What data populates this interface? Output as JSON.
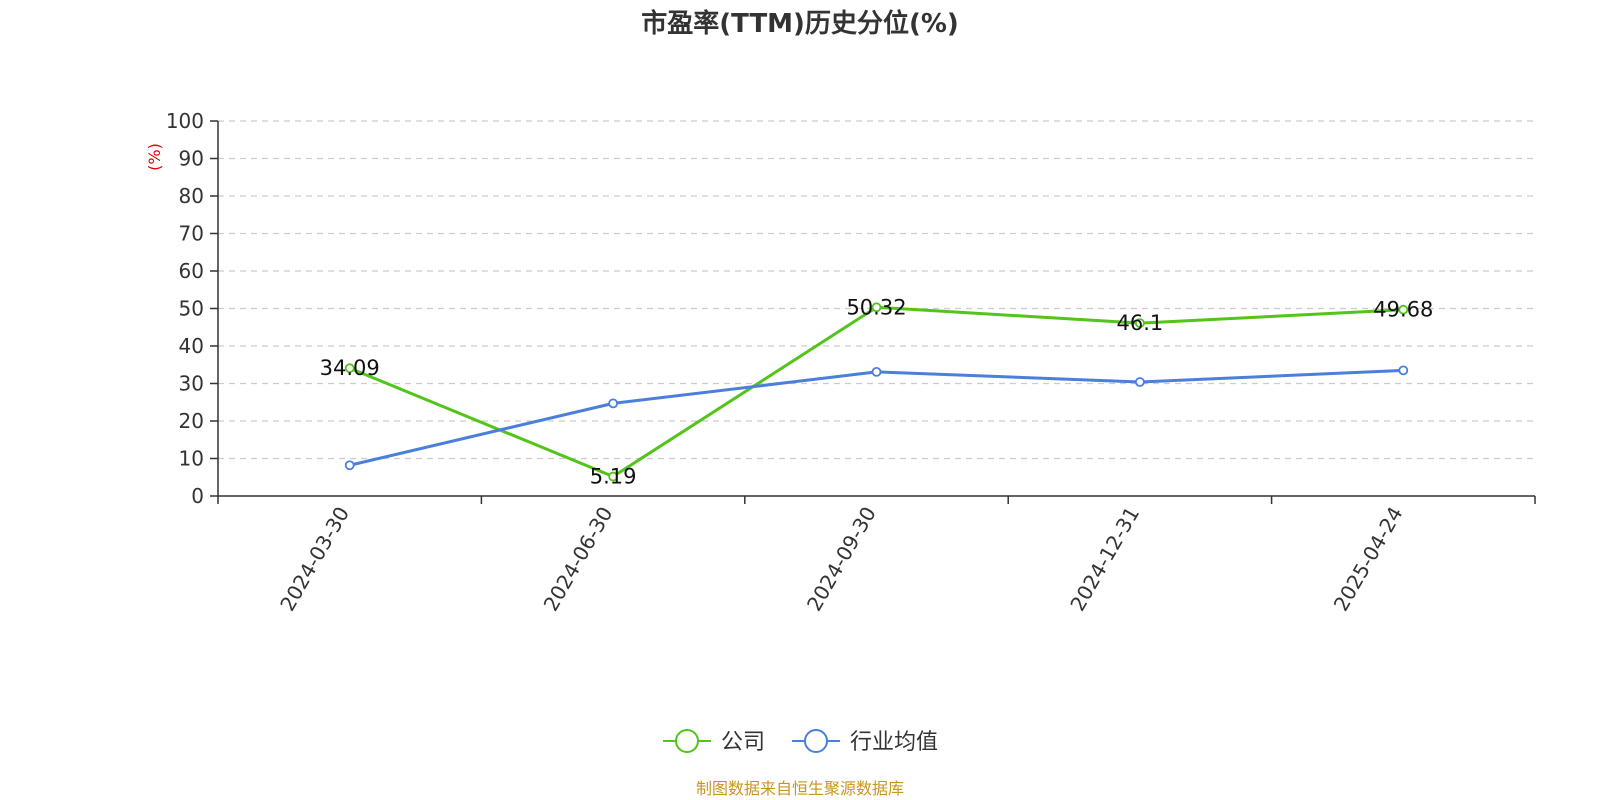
{
  "chart_data": {
    "type": "line",
    "title": "市盈率(TTM)历史分位(%)",
    "y_unit": "(%)",
    "categories": [
      "2024-03-30",
      "2024-06-30",
      "2024-09-30",
      "2024-12-31",
      "2025-04-24"
    ],
    "ylim": [
      0,
      100
    ],
    "y_ticks": [
      "0",
      "10",
      "20",
      "30",
      "40",
      "50",
      "60",
      "70",
      "80",
      "90",
      "100"
    ],
    "grid": true,
    "legend_position": "bottom-center",
    "series": [
      {
        "name": "公司",
        "color": "#52c41a",
        "values": [
          34.09,
          5.19,
          50.32,
          46.1,
          49.68
        ],
        "labels": [
          "34.09",
          "5.19",
          "50.32",
          "46.1",
          "49.68"
        ]
      },
      {
        "name": "行业均值",
        "color": "#4a7fdc",
        "values": [
          8.2,
          24.7,
          33.1,
          30.4,
          33.5
        ]
      }
    ]
  },
  "source": "制图数据来自恒生聚源数据库",
  "colors": {
    "unit": "#e60000",
    "source": "#c8961e",
    "axis": "#333333",
    "grid": "#cccccc"
  }
}
